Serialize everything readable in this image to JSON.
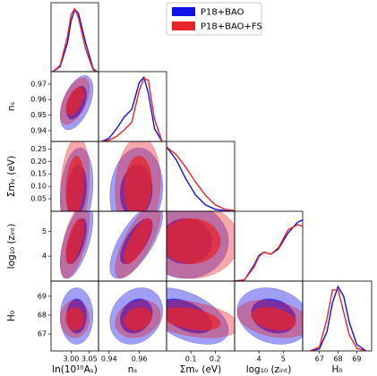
{
  "chart_data": {
    "type": "corner",
    "series": [
      {
        "name": "P18+BAO",
        "color": "#1010e8",
        "marginals": [
          [
            0,
            0.08,
            0.45,
            0.8,
            0.98,
            0.92,
            0.45,
            0.05,
            0
          ],
          [
            0,
            0.05,
            0.2,
            0.38,
            0.5,
            0.92,
            1.0,
            0.75,
            0.2,
            0
          ],
          [
            1.0,
            0.8,
            0.5,
            0.25,
            0.1,
            0.03,
            0.01,
            0
          ],
          [
            0,
            0.02,
            0.25,
            0.4,
            0.45,
            0.42,
            0.5,
            0.75,
            0.92,
            0.95
          ],
          [
            0,
            0.03,
            0.3,
            0.75,
            1.0,
            0.85,
            0.45,
            0.1,
            0
          ]
        ],
        "mean": [
          3.015,
          0.958,
          0.08,
          4.6,
          67.95
        ],
        "sigma": [
          0.018,
          0.007,
          0.07,
          0.6,
          0.6
        ],
        "corr": {
          "1-0": 0.5,
          "2-0": 0.2,
          "2-1": 0.1,
          "3-0": 0.6,
          "3-1": 0.7,
          "3-2": 0.0,
          "4-0": 0.0,
          "4-1": 0.2,
          "4-2": -0.5,
          "4-3": -0.2
        }
      },
      {
        "name": "P18+BAO+FS",
        "color": "#e8242a",
        "marginals": [
          [
            0,
            0.1,
            0.55,
            0.9,
            0.99,
            0.85,
            0.35,
            0.03,
            0
          ],
          [
            0,
            0.02,
            0.08,
            0.18,
            0.3,
            0.8,
            0.98,
            0.95,
            0.35,
            0
          ],
          [
            1.0,
            0.88,
            0.68,
            0.45,
            0.25,
            0.1,
            0.03,
            0.01
          ],
          [
            0,
            0.02,
            0.22,
            0.38,
            0.45,
            0.42,
            0.52,
            0.8,
            0.88,
            0.85
          ],
          [
            0,
            0.06,
            0.5,
            0.95,
            0.95,
            0.6,
            0.25,
            0.04,
            0
          ]
        ],
        "mean": [
          3.01,
          0.959,
          0.1,
          4.6,
          67.8
        ],
        "sigma": [
          0.016,
          0.006,
          0.08,
          0.6,
          0.4
        ],
        "corr": {
          "1-0": 0.55,
          "2-0": 0.2,
          "2-1": 0.1,
          "3-0": 0.6,
          "3-1": 0.75,
          "3-2": 0.0,
          "4-0": 0.0,
          "4-1": 0.2,
          "4-2": -0.4,
          "4-3": -0.3
        }
      }
    ],
    "params": [
      {
        "label": "ln(10¹⁰Aₛ)",
        "lim": [
          2.945,
          3.075
        ],
        "x": [
          2.95,
          2.97,
          2.99,
          3.0,
          3.01,
          3.02,
          3.04,
          3.06,
          3.07
        ],
        "xticks": [
          {
            "value": 3.0,
            "label": "3.00"
          },
          3.05
        ],
        "yticks": []
      },
      {
        "label": "nₛ",
        "lim": [
          0.933,
          0.978
        ],
        "x": [
          0.935,
          0.94,
          0.945,
          0.95,
          0.955,
          0.96,
          0.963,
          0.966,
          0.97,
          0.975
        ],
        "xticks": [
          0.94,
          0.96
        ],
        "yticks": [
          0.94,
          0.95,
          0.96,
          0.97
        ]
      },
      {
        "label": "Σmᵥ (eV)",
        "lim": [
          0,
          0.28
        ],
        "x": [
          0,
          0.04,
          0.08,
          0.12,
          0.16,
          0.2,
          0.24,
          0.28
        ],
        "xticks": [
          0.1,
          0.2
        ],
        "yticks": [
          0.05,
          {
            "value": 0.1,
            "label": "0.10"
          },
          0.15,
          {
            "value": 0.2,
            "label": "0.20"
          },
          0.25
        ]
      },
      {
        "label": "log₁₀ (zᵢₙₜ)",
        "lim": [
          3.0,
          5.8
        ],
        "x": [
          3.0,
          3.4,
          3.8,
          4.0,
          4.2,
          4.5,
          4.8,
          5.2,
          5.6,
          5.8
        ],
        "xticks": [
          4,
          5
        ],
        "yticks": [
          4,
          5
        ]
      },
      {
        "label": "H₀",
        "lim": [
          66.1,
          69.8
        ],
        "x": [
          66.5,
          67,
          67.4,
          67.7,
          68,
          68.3,
          68.6,
          69,
          69.5
        ],
        "xticks": [
          67,
          68,
          69
        ],
        "yticks": [
          67,
          68,
          69
        ]
      }
    ]
  }
}
